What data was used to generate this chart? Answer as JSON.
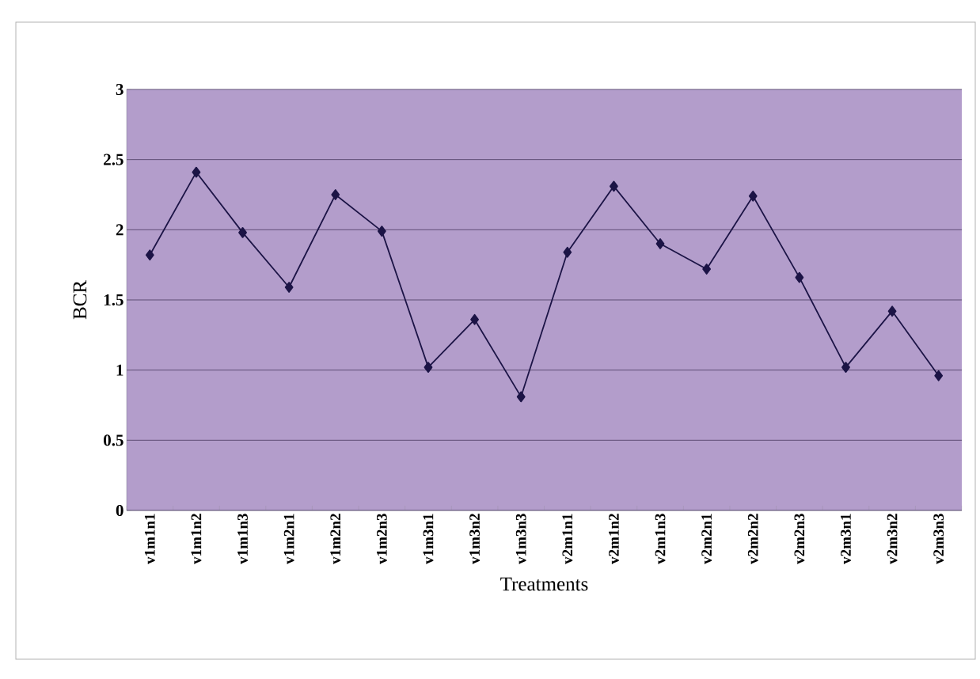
{
  "chart_data": {
    "type": "line",
    "xlabel": "Treatments",
    "ylabel": "BCR",
    "categories": [
      "v1m1n1",
      "v1m1n2",
      "v1m1n3",
      "v1m2n1",
      "v1m2n2",
      "v1m2n3",
      "v1m3n1",
      "v1m3n2",
      "v1m3n3",
      "v2m1n1",
      "v2m1n2",
      "v2m1n3",
      "v2m2n1",
      "v2m2n2",
      "v2m2n3",
      "v2m3n1",
      "v2m3n2",
      "v2m3n3"
    ],
    "series": [
      {
        "color": "#1c1446",
        "values": [
          1.82,
          2.41,
          1.98,
          1.59,
          2.25,
          1.99,
          1.02,
          1.36,
          0.81,
          1.84,
          2.31,
          1.9,
          1.72,
          2.24,
          1.66,
          1.02,
          1.42,
          0.96
        ]
      }
    ],
    "ylim": [
      0,
      3
    ],
    "yticks": [
      0,
      0.5,
      1,
      1.5,
      2,
      2.5,
      3
    ],
    "grid": "y",
    "marker": "diamond",
    "line_style": "solid"
  }
}
